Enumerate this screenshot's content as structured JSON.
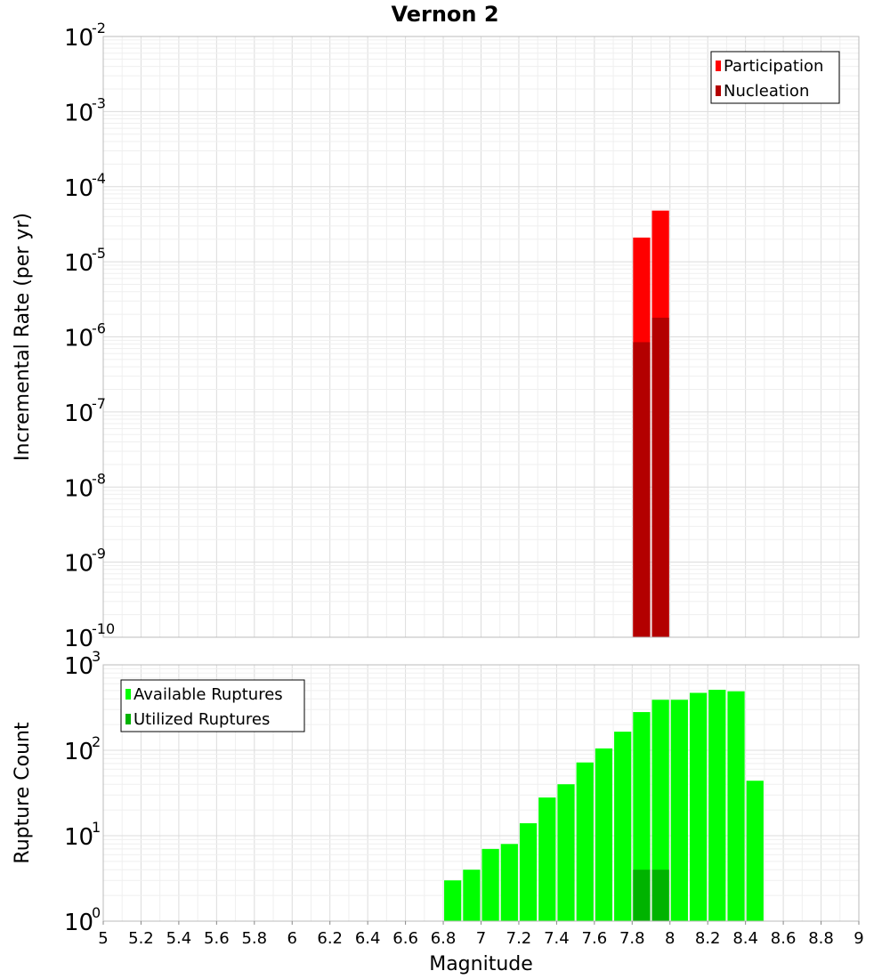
{
  "title": "Vernon 2",
  "chart_data": [
    {
      "type": "bar",
      "ylabel": "Incremental Rate (per yr)",
      "yscale": "log",
      "ylim_exponents": [
        -10,
        -2
      ],
      "xlim": [
        5,
        9
      ],
      "bin_width": 0.1,
      "legend_position": "top-right",
      "grid": true,
      "series": [
        {
          "name": "Participation",
          "color": "#ff0000",
          "x": [
            7.85,
            7.95
          ],
          "values": [
            2.1e-05,
            4.8e-05
          ]
        },
        {
          "name": "Nucleation",
          "color": "#b30000",
          "x": [
            7.85,
            7.95
          ],
          "values": [
            8.5e-07,
            1.8e-06
          ]
        }
      ]
    },
    {
      "type": "bar",
      "ylabel": "Rupture Count",
      "xlabel": "Magnitude",
      "yscale": "log",
      "ylim_exponents": [
        0,
        3
      ],
      "xlim": [
        5,
        9
      ],
      "bin_width": 0.1,
      "legend_position": "top-left",
      "grid": true,
      "xticks": [
        "5",
        "5.2",
        "5.4",
        "5.6",
        "5.8",
        "6",
        "6.2",
        "6.4",
        "6.6",
        "6.8",
        "7",
        "7.2",
        "7.4",
        "7.6",
        "7.8",
        "8",
        "8.2",
        "8.4",
        "8.6",
        "8.8",
        "9"
      ],
      "series": [
        {
          "name": "Available Ruptures",
          "color": "#00ff00",
          "x": [
            6.45,
            6.65,
            6.85,
            6.95,
            7.05,
            7.15,
            7.25,
            7.35,
            7.45,
            7.55,
            7.65,
            7.75,
            7.85,
            7.95,
            8.05,
            8.15,
            8.25,
            8.35,
            8.45
          ],
          "values": [
            1,
            1,
            3,
            4,
            7,
            8,
            14,
            28,
            40,
            72,
            105,
            165,
            280,
            390,
            390,
            470,
            510,
            490,
            44
          ]
        },
        {
          "name": "Utilized Ruptures",
          "color": "#00b300",
          "x": [
            7.85,
            7.95
          ],
          "values": [
            4,
            4
          ]
        }
      ]
    }
  ]
}
